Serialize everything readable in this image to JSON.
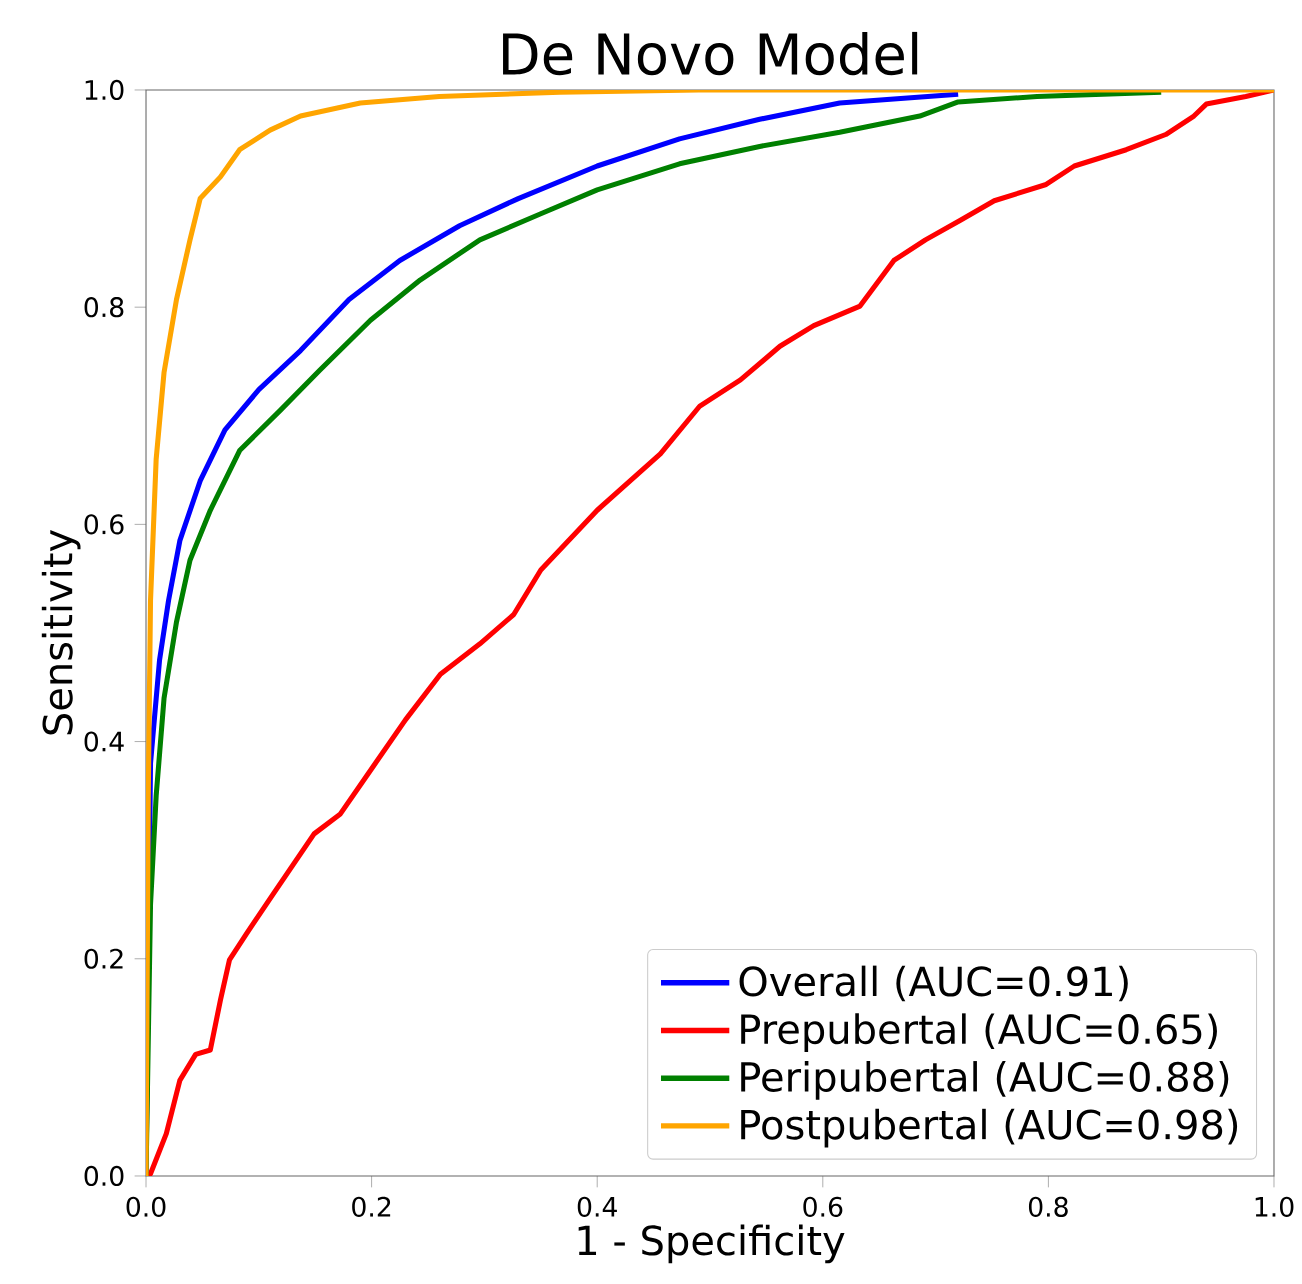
{
  "chart_data": {
    "type": "line",
    "title": "De Novo Model",
    "xlabel": "1 - Specificity",
    "ylabel": "Sensitivity",
    "xlim": [
      0,
      1
    ],
    "ylim": [
      0,
      1
    ],
    "xticks": [
      {
        "value": 0,
        "label": "0.0"
      },
      {
        "value": 0.2,
        "label": "0.2"
      },
      {
        "value": 0.4,
        "label": "0.4"
      },
      {
        "value": 0.6,
        "label": "0.6"
      },
      {
        "value": 0.8,
        "label": "0.8"
      },
      {
        "value": 1,
        "label": "1.0"
      }
    ],
    "yticks": [
      {
        "value": 0,
        "label": "0.0"
      },
      {
        "value": 0.2,
        "label": "0.2"
      },
      {
        "value": 0.4,
        "label": "0.4"
      },
      {
        "value": 0.6,
        "label": "0.6"
      },
      {
        "value": 0.8,
        "label": "0.8"
      },
      {
        "value": 1,
        "label": "1.0"
      }
    ],
    "grid": false,
    "legend": "bottom right",
    "marker": "none",
    "line_style": "solid",
    "series": [
      {
        "name": "Overall (AUC=0.91)",
        "color": "#0000ff",
        "x": [
          0,
          0.004,
          0.012,
          0.02,
          0.03,
          0.048,
          0.07,
          0.1,
          0.137,
          0.18,
          0.225,
          0.278,
          0.33,
          0.4,
          0.473,
          0.544,
          0.615,
          0.72
        ],
        "values": [
          0,
          0.38,
          0.475,
          0.53,
          0.585,
          0.64,
          0.687,
          0.724,
          0.76,
          0.807,
          0.843,
          0.875,
          0.9,
          0.93,
          0.955,
          0.973,
          0.988,
          0.996
        ]
      },
      {
        "name": "Prepubertal (AUC=0.65)",
        "color": "#ff0000",
        "x": [
          0,
          0.004,
          0.018,
          0.03,
          0.044,
          0.057,
          0.066,
          0.074,
          0.089,
          0.113,
          0.149,
          0.172,
          0.202,
          0.23,
          0.261,
          0.296,
          0.326,
          0.35,
          0.4,
          0.456,
          0.491,
          0.527,
          0.562,
          0.592,
          0.633,
          0.663,
          0.691,
          0.722,
          0.752,
          0.798,
          0.823,
          0.869,
          0.904,
          0.929,
          0.94,
          0.975,
          1
        ],
        "values": [
          0,
          0.002,
          0.039,
          0.088,
          0.112,
          0.116,
          0.162,
          0.199,
          0.223,
          0.26,
          0.315,
          0.333,
          0.378,
          0.42,
          0.462,
          0.49,
          0.517,
          0.558,
          0.613,
          0.665,
          0.709,
          0.733,
          0.764,
          0.783,
          0.801,
          0.843,
          0.862,
          0.88,
          0.898,
          0.913,
          0.93,
          0.945,
          0.959,
          0.976,
          0.987,
          0.994,
          1
        ]
      },
      {
        "name": "Peripubertal (AUC=0.88)",
        "color": "#008000",
        "x": [
          0,
          0.004,
          0.009,
          0.016,
          0.027,
          0.039,
          0.057,
          0.083,
          0.119,
          0.154,
          0.199,
          0.243,
          0.296,
          0.35,
          0.4,
          0.473,
          0.544,
          0.615,
          0.686,
          0.72,
          0.79,
          0.9
        ],
        "values": [
          0,
          0.25,
          0.35,
          0.44,
          0.51,
          0.567,
          0.613,
          0.668,
          0.705,
          0.742,
          0.788,
          0.825,
          0.862,
          0.886,
          0.908,
          0.932,
          0.948,
          0.961,
          0.976,
          0.989,
          0.994,
          0.998
        ]
      },
      {
        "name": "Postpubertal (AUC=0.98)",
        "color": "#ffa500",
        "x": [
          0,
          0.002,
          0.004,
          0.009,
          0.016,
          0.027,
          0.039,
          0.048,
          0.066,
          0.083,
          0.11,
          0.137,
          0.19,
          0.26,
          0.367,
          0.49,
          1
        ],
        "values": [
          0,
          0.35,
          0.53,
          0.66,
          0.74,
          0.807,
          0.862,
          0.9,
          0.92,
          0.945,
          0.963,
          0.976,
          0.988,
          0.994,
          0.998,
          1,
          1
        ]
      }
    ]
  }
}
